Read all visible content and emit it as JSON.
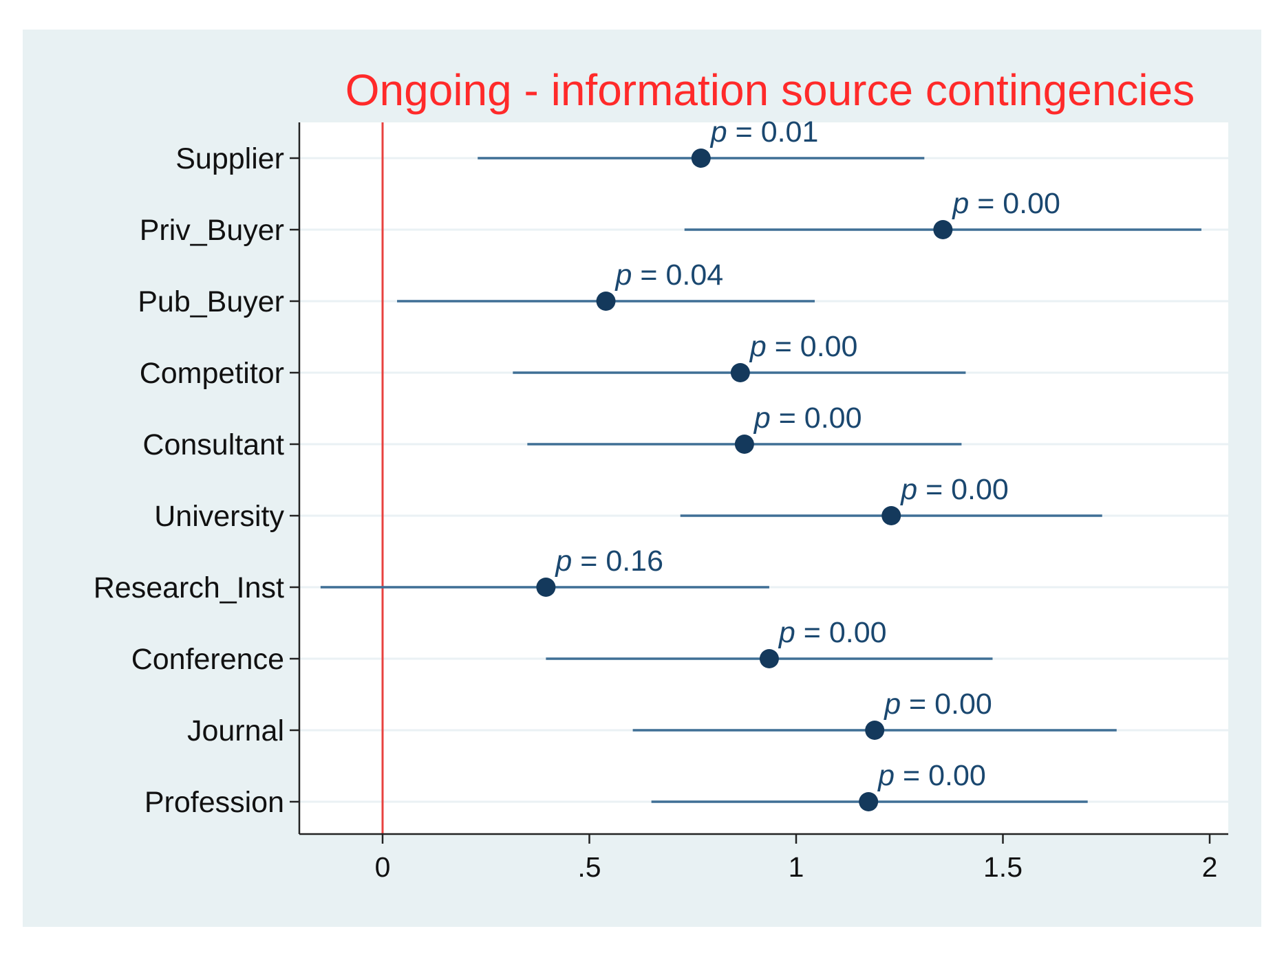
{
  "chart_data": {
    "type": "scatter",
    "subtype": "coefficient-plot-with-confidence-intervals",
    "title": "Ongoing - information source contingencies",
    "orientation": "horizontal",
    "categories": [
      "Supplier",
      "Priv_Buyer",
      "Pub_Buyer",
      "Competitor",
      "Consultant",
      "University",
      "Research_Inst",
      "Conference",
      "Journal",
      "Profession"
    ],
    "estimates": [
      0.77,
      1.355,
      0.54,
      0.865,
      0.875,
      1.23,
      0.395,
      0.935,
      1.19,
      1.175
    ],
    "ci_lower": [
      0.23,
      0.73,
      0.035,
      0.315,
      0.35,
      0.72,
      -0.15,
      0.395,
      0.605,
      0.65
    ],
    "ci_upper": [
      1.31,
      1.98,
      1.045,
      1.41,
      1.4,
      1.74,
      0.935,
      1.475,
      1.775,
      1.705
    ],
    "p_label_prefix": "p",
    "p_label_separator": " = ",
    "p_values": [
      "0.01",
      "0.00",
      "0.04",
      "0.00",
      "0.00",
      "0.00",
      "0.16",
      "0.00",
      "0.00",
      "0.00"
    ],
    "xlim": [
      -0.2,
      2.04
    ],
    "xticks": [
      0,
      0.5,
      1,
      1.5,
      2
    ],
    "xtick_labels": [
      "0",
      ".5",
      "1",
      "1.5",
      "2"
    ],
    "reference_line_x": 0,
    "xlabel": "",
    "ylabel": "",
    "grid": true,
    "legend": "none",
    "colors": {
      "background": "#e8f1f3",
      "plot_background": "#ffffff",
      "title": "#ff2a2a",
      "point": "#14395c",
      "ci": "#3f6f95",
      "p_label": "#1a476f",
      "reference_line": "#e8423f"
    }
  }
}
